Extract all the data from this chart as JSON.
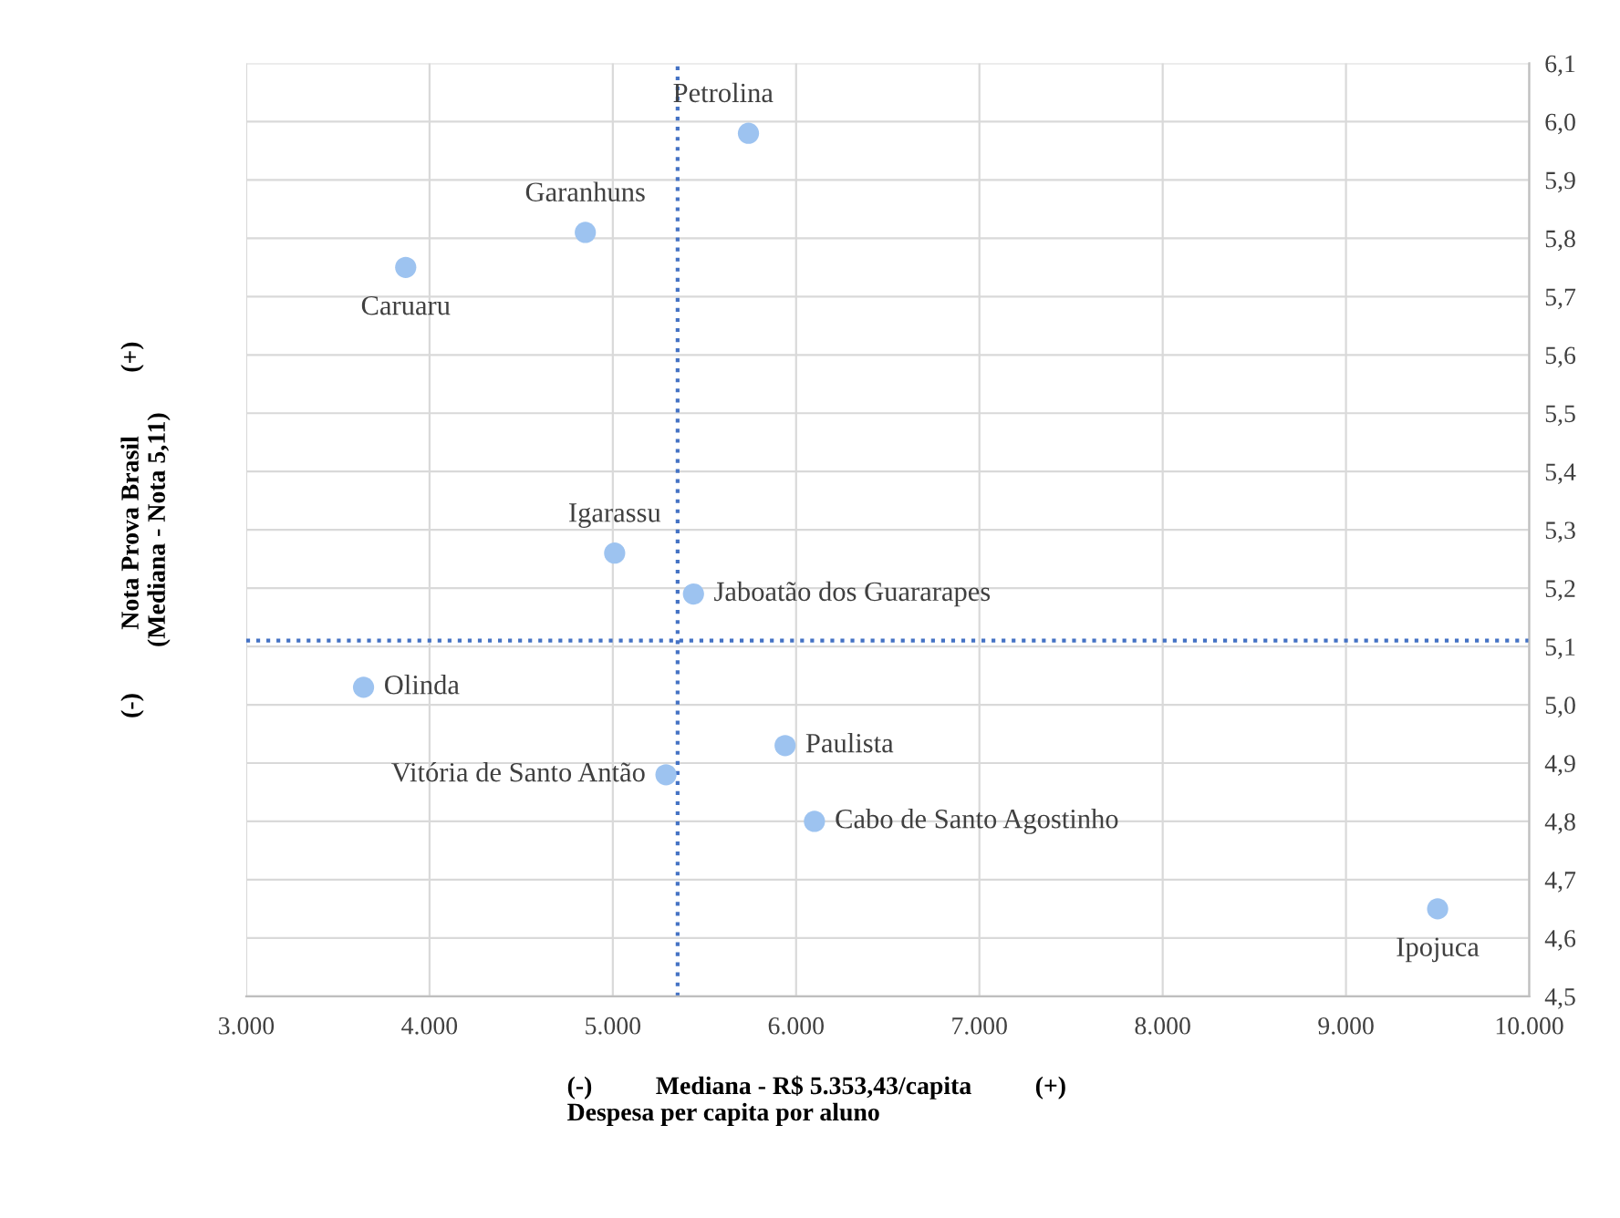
{
  "chart_data": {
    "type": "scatter",
    "xlabel": "(-)          Mediana - R$ 5.353,43/capita          (+)\nDespesa per capita por aluno",
    "ylabel": "(-)          Nota Prova Brasil          (+)\n(Mediana - Nota 5,11)",
    "x": [
      5740,
      4850,
      3870,
      5010,
      5440,
      3640,
      5940,
      5290,
      6100,
      9500
    ],
    "series": [
      {
        "color": "#9dc3f0",
        "values": [
          5.98,
          5.81,
          5.75,
          5.26,
          5.19,
          5.03,
          4.93,
          4.88,
          4.8,
          4.65
        ]
      }
    ],
    "annotations": [
      {
        "text": "Petrolina",
        "x": 5740,
        "y": 5.98
      },
      {
        "text": "Garanhuns",
        "x": 4850,
        "y": 5.81
      },
      {
        "text": "Caruaru",
        "x": 3870,
        "y": 5.75
      },
      {
        "text": "Igarassu",
        "x": 5010,
        "y": 5.26
      },
      {
        "text": "Jaboatão dos Guararapes",
        "x": 5440,
        "y": 5.19
      },
      {
        "text": "Olinda",
        "x": 3640,
        "y": 5.03
      },
      {
        "text": "Paulista",
        "x": 5940,
        "y": 4.93
      },
      {
        "text": "Vitória de Santo Antão",
        "x": 5290,
        "y": 4.88
      },
      {
        "text": "Cabo de Santo Agostinho",
        "x": 6100,
        "y": 4.8
      },
      {
        "text": "Ipojuca",
        "x": 9500,
        "y": 4.65
      }
    ],
    "ref_lines": [
      {
        "axis": "x",
        "value": 5353.43,
        "color": "#4472c4",
        "line_style": "dotted"
      },
      {
        "axis": "y",
        "value": 5.11,
        "color": "#4472c4",
        "line_style": "dotted"
      }
    ],
    "xlim": [
      3000,
      10000
    ],
    "xticks": [
      {
        "value": 3000,
        "label": "3.000"
      },
      {
        "value": 4000,
        "label": "4.000"
      },
      {
        "value": 5000,
        "label": "5.000"
      },
      {
        "value": 6000,
        "label": "6.000"
      },
      {
        "value": 7000,
        "label": "7.000"
      },
      {
        "value": 8000,
        "label": "8.000"
      },
      {
        "value": 9000,
        "label": "9.000"
      },
      {
        "value": 10000,
        "label": "10.000"
      }
    ],
    "ylim": [
      4.5,
      6.1
    ],
    "yticks": [
      {
        "value": 4.5,
        "label": "4,5"
      },
      {
        "value": 4.6,
        "label": "4,6"
      },
      {
        "value": 4.7,
        "label": "4,7"
      },
      {
        "value": 4.8,
        "label": "4,8"
      },
      {
        "value": 4.9,
        "label": "4,9"
      },
      {
        "value": 5.0,
        "label": "5,0"
      },
      {
        "value": 5.1,
        "label": "5,1"
      },
      {
        "value": 5.2,
        "label": "5,2"
      },
      {
        "value": 5.3,
        "label": "5,3"
      },
      {
        "value": 5.4,
        "label": "5,4"
      },
      {
        "value": 5.5,
        "label": "5,5"
      },
      {
        "value": 5.6,
        "label": "5,6"
      },
      {
        "value": 5.7,
        "label": "5,7"
      },
      {
        "value": 5.8,
        "label": "5,8"
      },
      {
        "value": 5.9,
        "label": "5,9"
      },
      {
        "value": 6.0,
        "label": "6,0"
      },
      {
        "value": 6.1,
        "label": "6,1"
      }
    ],
    "grid": true,
    "marker": "circle"
  }
}
